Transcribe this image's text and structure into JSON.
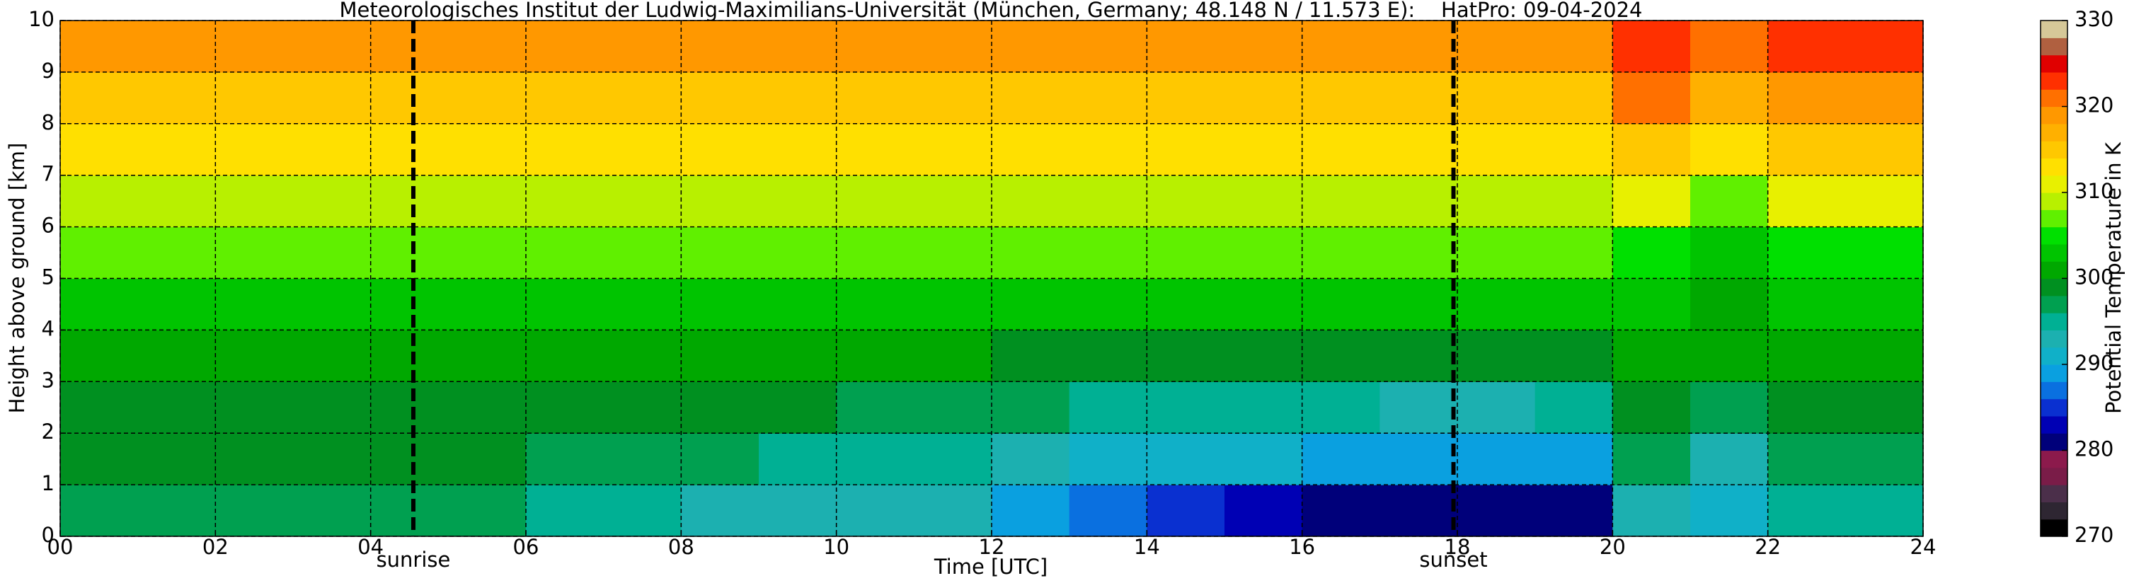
{
  "chart_data": {
    "type": "heatmap",
    "title": "Meteorologisches Institut der Ludwig-Maximilians-Universität (München, Germany; 48.148 N / 11.573 E):    HatPro: 09-04-2024",
    "xlabel": "Time [UTC]",
    "ylabel": "Height above ground [km]",
    "colorbar_label": "Potential Temperature in K",
    "x": [
      0,
      1,
      2,
      3,
      4,
      5,
      6,
      7,
      8,
      9,
      10,
      11,
      12,
      13,
      14,
      15,
      16,
      17,
      18,
      19,
      20,
      21,
      22,
      23,
      24
    ],
    "y": [
      0,
      1,
      2,
      3,
      4,
      5,
      6,
      7,
      8,
      9,
      10
    ],
    "z": [
      [
        296,
        296,
        296,
        296,
        296,
        296,
        295,
        295,
        293,
        293,
        293,
        293,
        288,
        286,
        284,
        283,
        281,
        281,
        281,
        281,
        293,
        290,
        294,
        294
      ],
      [
        298,
        298,
        298,
        298,
        298,
        298,
        297,
        297,
        296,
        295,
        295,
        294,
        292,
        291,
        290,
        290,
        289,
        289,
        288,
        289,
        296,
        293,
        297,
        297
      ],
      [
        299,
        299,
        299,
        299,
        299,
        299,
        299,
        299,
        298,
        298,
        297,
        297,
        296,
        295,
        295,
        294,
        294,
        293,
        293,
        294,
        298,
        296,
        299,
        299
      ],
      [
        301,
        301,
        301,
        301,
        301,
        301,
        301,
        301,
        300,
        300,
        300,
        300,
        299,
        299,
        299,
        299,
        299,
        299,
        299,
        299,
        301,
        300,
        301,
        301
      ],
      [
        303,
        303,
        303,
        303,
        303,
        303,
        303,
        303,
        303,
        303,
        303,
        302,
        302,
        302,
        302,
        302,
        302,
        302,
        302,
        302,
        303,
        301,
        303,
        303
      ],
      [
        306,
        306,
        306,
        306,
        306,
        306,
        306,
        306,
        306,
        306,
        306,
        306,
        306,
        306,
        306,
        306,
        306,
        306,
        306,
        306,
        305,
        303,
        305,
        305
      ],
      [
        309,
        309,
        309,
        309,
        309,
        309,
        309,
        309,
        309,
        309,
        309,
        309,
        309,
        309,
        309,
        309,
        309,
        309,
        309,
        309,
        310,
        307,
        310,
        310
      ],
      [
        312,
        312,
        312,
        312,
        312,
        312,
        312,
        312,
        312,
        312,
        312,
        312,
        312,
        312,
        312,
        312,
        312,
        312,
        312,
        312,
        315,
        312,
        315,
        315
      ],
      [
        315,
        315,
        315,
        315,
        315,
        315,
        315,
        315,
        315,
        315,
        315,
        315,
        315,
        315,
        315,
        315,
        315,
        315,
        315,
        315,
        320,
        317,
        319,
        319
      ],
      [
        318,
        318,
        318,
        318,
        318,
        318,
        318,
        318,
        318,
        318,
        318,
        318,
        318,
        318,
        318,
        318,
        318,
        318,
        318,
        318,
        323,
        321,
        323,
        322
      ]
    ],
    "xlim": [
      0,
      24
    ],
    "ylim": [
      0,
      10
    ],
    "zlim": [
      270,
      330
    ],
    "xticks": [
      {
        "value": 0,
        "label": "00"
      },
      {
        "value": 2,
        "label": "02"
      },
      {
        "value": 4,
        "label": "04"
      },
      {
        "value": 6,
        "label": "06"
      },
      {
        "value": 8,
        "label": "08"
      },
      10,
      12,
      14,
      16,
      18,
      20,
      22,
      24
    ],
    "yticks": [
      0,
      1,
      2,
      3,
      4,
      5,
      6,
      7,
      8,
      9,
      10
    ],
    "zticks": [
      270,
      280,
      290,
      300,
      310,
      320,
      330
    ],
    "grid": true,
    "colors": [
      "#000000",
      "#2e2632",
      "#4b2f4a",
      "#7a1c48",
      "#8c1a4c",
      "#00007a",
      "#0000b4",
      "#0a30d0",
      "#0a70e0",
      "#0aa0e0",
      "#10b0c8",
      "#1cb0b0",
      "#00b094",
      "#00a050",
      "#009020",
      "#00a800",
      "#00c400",
      "#00e000",
      "#60f000",
      "#b8f000",
      "#e8f000",
      "#ffe000",
      "#ffc800",
      "#ffb000",
      "#ff9800",
      "#ff7000",
      "#ff3000",
      "#e00000",
      "#b06040",
      "#d6c898"
    ],
    "annotations": [
      {
        "text": "sunrise",
        "x": 4.55
      },
      {
        "text": "sunset",
        "x": 17.95
      }
    ]
  }
}
